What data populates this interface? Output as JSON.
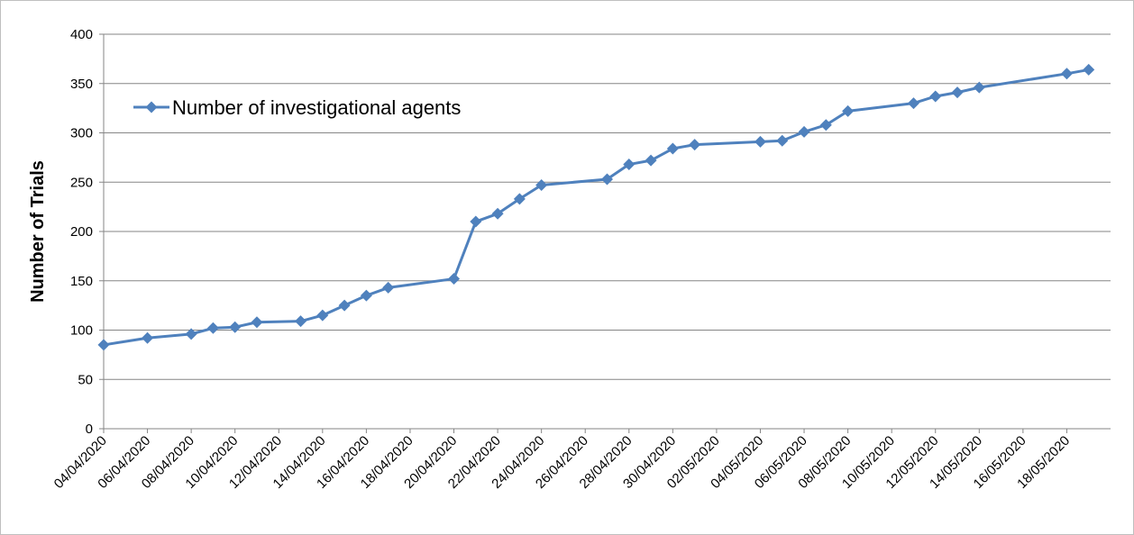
{
  "chart_data": {
    "type": "line",
    "ylabel": "Number of Trials",
    "series": [
      {
        "name": "Number of investigational agents",
        "color": "#4f81bd",
        "x": [
          "04/04/2020",
          "06/04/2020",
          "08/04/2020",
          "09/04/2020",
          "10/04/2020",
          "11/04/2020",
          "13/04/2020",
          "14/04/2020",
          "15/04/2020",
          "16/04/2020",
          "17/04/2020",
          "20/04/2020",
          "21/04/2020",
          "22/04/2020",
          "23/04/2020",
          "24/04/2020",
          "27/04/2020",
          "28/04/2020",
          "29/04/2020",
          "30/04/2020",
          "01/05/2020",
          "04/05/2020",
          "05/05/2020",
          "06/05/2020",
          "07/05/2020",
          "08/05/2020",
          "11/05/2020",
          "12/05/2020",
          "13/05/2020",
          "14/05/2020",
          "18/05/2020",
          "19/05/2020"
        ],
        "values": [
          85,
          92,
          96,
          102,
          103,
          108,
          109,
          115,
          125,
          135,
          143,
          152,
          210,
          218,
          233,
          247,
          253,
          268,
          272,
          284,
          288,
          291,
          292,
          301,
          308,
          322,
          330,
          337,
          341,
          346,
          360,
          364
        ]
      }
    ],
    "xlim": [
      "04/04/2020",
      "20/05/2020"
    ],
    "xticks": [
      "04/04/2020",
      "06/04/2020",
      "08/04/2020",
      "10/04/2020",
      "12/04/2020",
      "14/04/2020",
      "16/04/2020",
      "18/04/2020",
      "20/04/2020",
      "22/04/2020",
      "24/04/2020",
      "26/04/2020",
      "28/04/2020",
      "30/04/2020",
      "02/05/2020",
      "04/05/2020",
      "06/05/2020",
      "08/05/2020",
      "10/05/2020",
      "12/05/2020",
      "14/05/2020",
      "16/05/2020",
      "18/05/2020"
    ],
    "ylim": [
      0,
      400
    ],
    "yticks": [
      0,
      50,
      100,
      150,
      200,
      250,
      300,
      350,
      400
    ],
    "grid": true,
    "legend": "upper left"
  }
}
